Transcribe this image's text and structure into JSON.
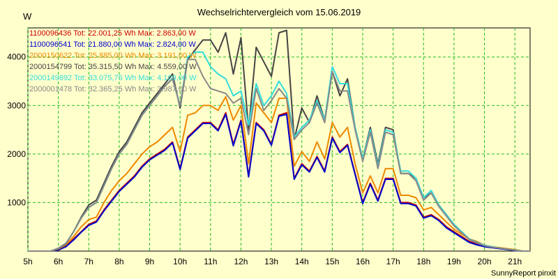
{
  "chart_data": {
    "type": "line",
    "title": "Wechselrichtervergleich vom 15.06.2019",
    "ylabel": "W",
    "xlabel": "",
    "ylim": [
      0,
      4600
    ],
    "xlim": [
      5,
      21.5
    ],
    "y_ticks": [
      1000,
      2000,
      3000,
      4000
    ],
    "y_tick_labels": [
      "1000",
      "2000",
      "3000",
      "4000"
    ],
    "x_ticks": [
      5,
      6,
      7,
      8,
      9,
      10,
      11,
      12,
      13,
      14,
      15,
      16,
      17,
      18,
      19,
      20,
      21
    ],
    "x_tick_labels": [
      "5h",
      "6h",
      "7h",
      "8h",
      "9h",
      "10h",
      "11h",
      "12h",
      "13h",
      "14h",
      "15h",
      "16h",
      "17h",
      "18h",
      "19h",
      "20h",
      "21h"
    ],
    "grid": true,
    "legend_position": "top-left",
    "footer": "SunnyReport pinxit",
    "x": [
      5.0,
      5.5,
      5.75,
      6.0,
      6.25,
      6.5,
      6.75,
      7.0,
      7.25,
      7.5,
      7.75,
      8.0,
      8.25,
      8.5,
      8.75,
      9.0,
      9.25,
      9.5,
      9.75,
      10.0,
      10.25,
      10.5,
      10.75,
      11.0,
      11.25,
      11.5,
      11.75,
      12.0,
      12.25,
      12.5,
      12.75,
      13.0,
      13.25,
      13.5,
      13.75,
      14.0,
      14.25,
      14.5,
      14.75,
      15.0,
      15.25,
      15.5,
      15.75,
      16.0,
      16.25,
      16.5,
      16.75,
      17.0,
      17.25,
      17.5,
      17.75,
      18.0,
      18.25,
      18.5,
      18.75,
      19.0,
      19.25,
      19.5,
      19.75,
      20.0,
      20.25,
      20.5,
      20.75,
      21.0,
      21.25,
      21.5
    ],
    "series": [
      {
        "name": "1100096436",
        "legend": "1100096436 Tot: 22.001,25 Wh Max: 2.863,00 W",
        "color": "#cc0000",
        "values": [
          0,
          0,
          0,
          30,
          100,
          250,
          400,
          550,
          620,
          850,
          1050,
          1250,
          1400,
          1550,
          1750,
          1900,
          2000,
          2100,
          2250,
          1700,
          2350,
          2500,
          2650,
          2650,
          2500,
          2850,
          2200,
          2700,
          1550,
          2650,
          2500,
          2200,
          2800,
          2850,
          1500,
          1800,
          1650,
          1950,
          1650,
          2350,
          2050,
          2200,
          1600,
          1000,
          1400,
          1050,
          1500,
          1500,
          1000,
          1000,
          950,
          700,
          750,
          650,
          500,
          400,
          300,
          200,
          150,
          100,
          80,
          60,
          40,
          20,
          0,
          0
        ]
      },
      {
        "name": "1100096541",
        "legend": "1100096541 Tot: 21.880,00 Wh Max: 2.824,00 W",
        "color": "#0000cc",
        "values": [
          0,
          0,
          0,
          20,
          90,
          230,
          390,
          530,
          600,
          830,
          1030,
          1230,
          1380,
          1530,
          1730,
          1880,
          1980,
          2080,
          2230,
          1680,
          2330,
          2480,
          2630,
          2630,
          2480,
          2820,
          2170,
          2680,
          1530,
          2630,
          2480,
          2180,
          2780,
          2820,
          1480,
          1780,
          1630,
          1930,
          1630,
          2330,
          2030,
          2180,
          1580,
          980,
          1380,
          1030,
          1480,
          1480,
          980,
          980,
          930,
          680,
          730,
          630,
          480,
          380,
          280,
          180,
          130,
          90,
          70,
          50,
          30,
          10,
          0,
          0
        ]
      },
      {
        "name": "2000150622",
        "legend": "2000150622 Tot: 25.885,00 Wh Max: 3.191,00 W",
        "color": "#ee8800",
        "values": [
          0,
          0,
          0,
          40,
          130,
          300,
          500,
          650,
          700,
          1000,
          1250,
          1450,
          1600,
          1800,
          2000,
          2150,
          2250,
          2400,
          2550,
          2050,
          2800,
          2850,
          3000,
          3000,
          2900,
          3180,
          2700,
          3000,
          1800,
          3050,
          2850,
          2650,
          3150,
          3150,
          1750,
          2050,
          1850,
          2250,
          1900,
          2650,
          2350,
          2550,
          1800,
          1200,
          1550,
          1200,
          1700,
          1700,
          1150,
          1150,
          1100,
          850,
          900,
          750,
          600,
          450,
          350,
          250,
          200,
          120,
          90,
          70,
          50,
          30,
          0,
          0
        ]
      },
      {
        "name": "2000154799",
        "legend": "2000154799 Tot: 35.315,50 Wh Max: 4.559,00 W",
        "color": "#444444",
        "values": [
          0,
          0,
          0,
          50,
          150,
          400,
          700,
          950,
          1050,
          1400,
          1750,
          2050,
          2250,
          2550,
          2850,
          3050,
          3250,
          3450,
          3650,
          2950,
          3950,
          4150,
          4350,
          4350,
          4100,
          4500,
          3650,
          4400,
          2500,
          4200,
          3900,
          3600,
          4500,
          4550,
          2300,
          2950,
          2650,
          3200,
          2700,
          3700,
          3200,
          3550,
          2550,
          1900,
          2550,
          1800,
          2550,
          2500,
          1600,
          1600,
          1500,
          1100,
          1200,
          950,
          750,
          550,
          400,
          250,
          180,
          120,
          90,
          60,
          40,
          20,
          0,
          0
        ]
      },
      {
        "name": "2000149892",
        "legend": "2000149892 Tot: 33.075,75 Wh Max: 4.109,00 W",
        "color": "#33dddd",
        "values": [
          0,
          0,
          0,
          60,
          160,
          400,
          680,
          900,
          1000,
          1350,
          1700,
          2000,
          2200,
          2500,
          2800,
          3000,
          3200,
          3400,
          3550,
          3000,
          4000,
          4100,
          4100,
          3800,
          3650,
          3550,
          3200,
          3300,
          2600,
          3450,
          3000,
          3200,
          3500,
          3250,
          2350,
          2550,
          2700,
          3100,
          2700,
          3800,
          3450,
          3450,
          2550,
          1900,
          2500,
          1750,
          2500,
          2450,
          1650,
          1650,
          1500,
          1100,
          1250,
          950,
          750,
          550,
          400,
          250,
          180,
          120,
          90,
          60,
          40,
          20,
          0,
          0
        ]
      },
      {
        "name": "2000001478",
        "legend": "2000001478 Tot: 32.365,25 Wh Max: 3.987,00 W",
        "color": "#888888",
        "values": [
          0,
          0,
          0,
          60,
          160,
          400,
          680,
          900,
          1000,
          1350,
          1700,
          2000,
          2200,
          2500,
          2800,
          3000,
          3200,
          3400,
          3550,
          3000,
          3950,
          3950,
          3600,
          3350,
          3300,
          3250,
          3050,
          3150,
          2400,
          3350,
          2900,
          3100,
          3350,
          3150,
          2300,
          2500,
          2650,
          3050,
          2650,
          3700,
          3300,
          3300,
          2500,
          1850,
          2450,
          1700,
          2450,
          2400,
          1600,
          1600,
          1450,
          1050,
          1200,
          920,
          720,
          520,
          380,
          240,
          170,
          110,
          80,
          60,
          40,
          20,
          0,
          0
        ]
      }
    ]
  }
}
